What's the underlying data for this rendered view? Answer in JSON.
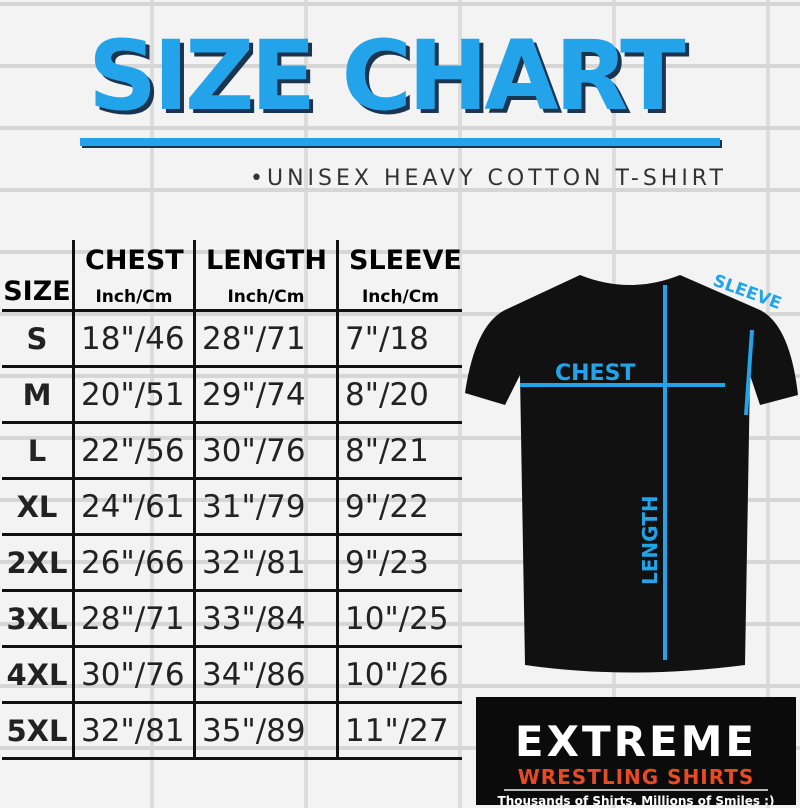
{
  "title": "SIZE CHART",
  "subtitle": "•UNISEX HEAVY COTTON T-SHIRT",
  "table": {
    "columns": [
      "SIZE",
      "CHEST",
      "LENGTH",
      "SLEEVE"
    ],
    "unit": "Inch/Cm",
    "rows": [
      [
        "S",
        "18\"/46",
        "28\"/71",
        "7\"/18"
      ],
      [
        "M",
        "20\"/51",
        "29\"/74",
        "8\"/20"
      ],
      [
        "L",
        "22\"/56",
        "30\"/76",
        "8\"/21"
      ],
      [
        "XL",
        "24\"/61",
        "31\"/79",
        "9\"/22"
      ],
      [
        "2XL",
        "26\"/66",
        "32\"/81",
        "9\"/23"
      ],
      [
        "3XL",
        "28\"/71",
        "33\"/84",
        "10\"/25"
      ],
      [
        "4XL",
        "30\"/76",
        "34\"/86",
        "10\"/26"
      ],
      [
        "5XL",
        "32\"/81",
        "35\"/89",
        "11\"/27"
      ]
    ]
  },
  "diagram": {
    "chest": "CHEST",
    "length": "LENGTH",
    "sleeve": "SLEEVE",
    "line_color": "#23a3ea"
  },
  "logo": {
    "line1": "EXTREME",
    "line2": "WRESTLING SHIRTS",
    "tagline": "Thousands of Shirts. Millions of Smiles :)",
    "accent": "#e84a24"
  },
  "colors": {
    "title": "#23a3ea",
    "title_shadow": "#1a3550"
  }
}
